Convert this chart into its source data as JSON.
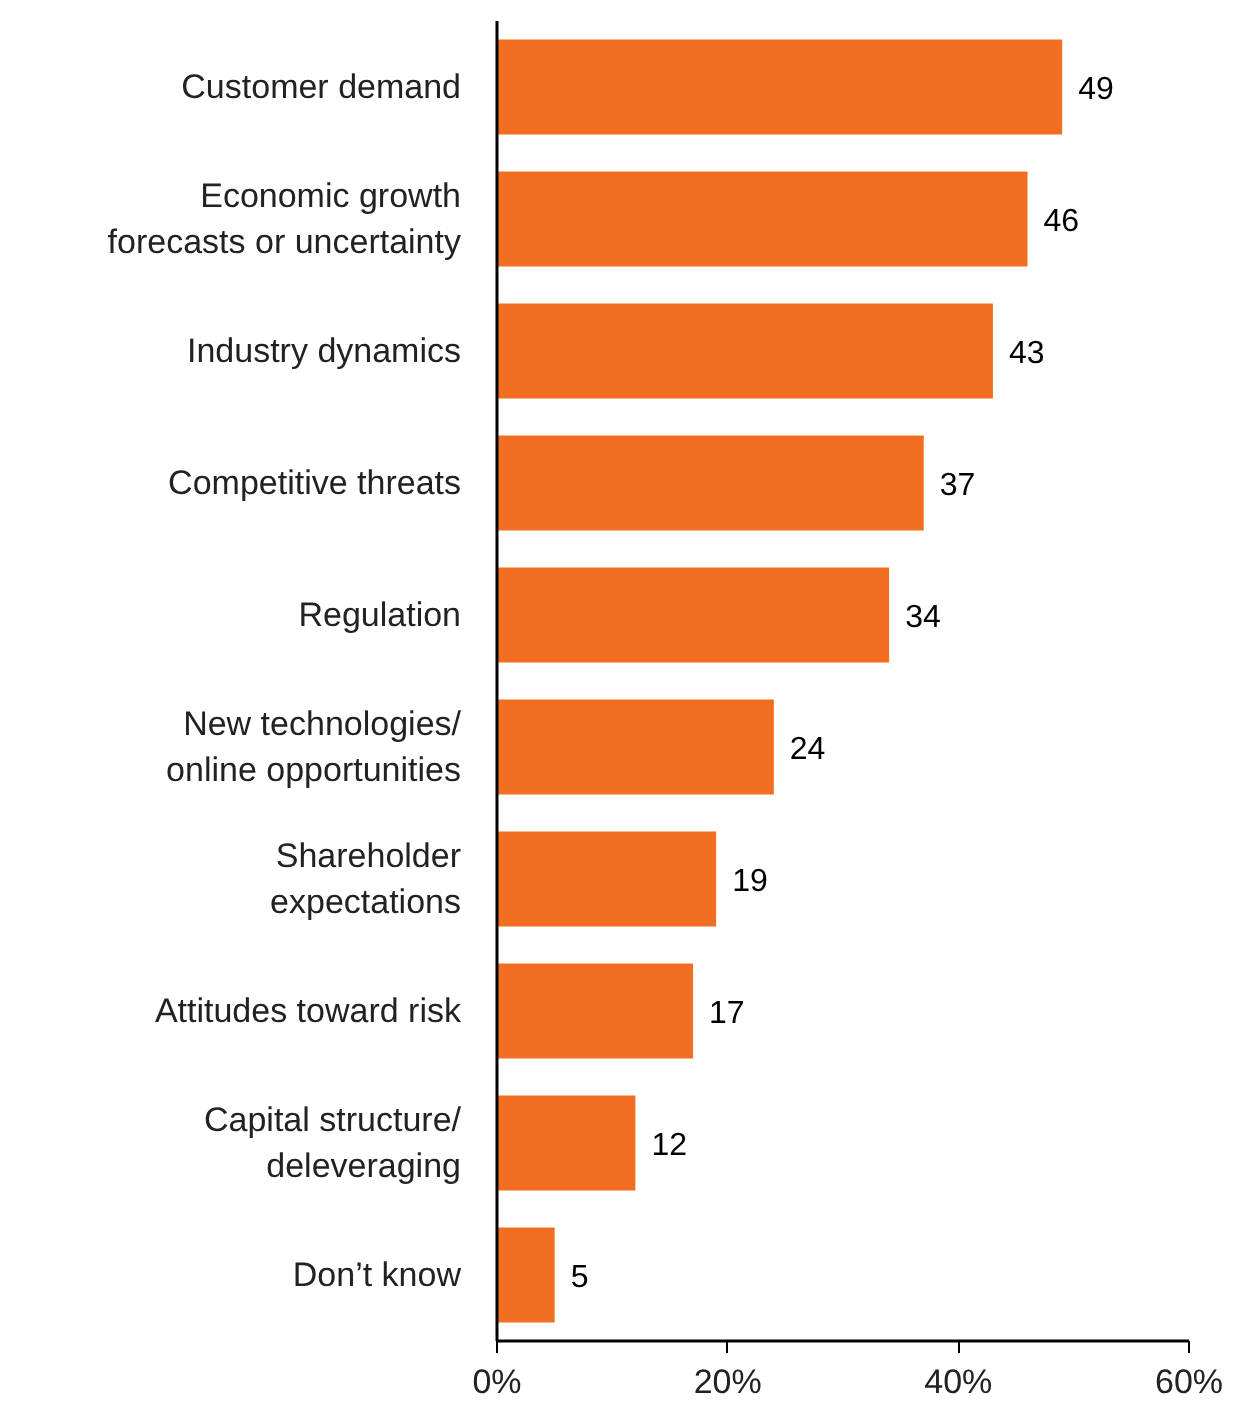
{
  "chart_data": {
    "type": "bar",
    "orientation": "horizontal",
    "categories": [
      "Customer demand",
      "Economic growth\nforecasts or uncertainty",
      "Industry dynamics",
      "Competitive threats",
      "Regulation",
      "New technologies/\nonline opportunities",
      "Shareholder\nexpectations",
      "Attitudes toward risk",
      "Capital structure/\ndeleveraging",
      "Don’t know"
    ],
    "values": [
      49,
      46,
      43,
      37,
      34,
      24,
      19,
      17,
      12,
      5
    ],
    "color": "#f26f21",
    "xlim": [
      0,
      60
    ],
    "xticks": [
      {
        "value": 0,
        "label": "0%"
      },
      {
        "value": 20,
        "label": "20%"
      },
      {
        "value": 40,
        "label": "40%"
      },
      {
        "value": 60,
        "label": "60%"
      }
    ],
    "data_labels": true,
    "grid": false
  }
}
